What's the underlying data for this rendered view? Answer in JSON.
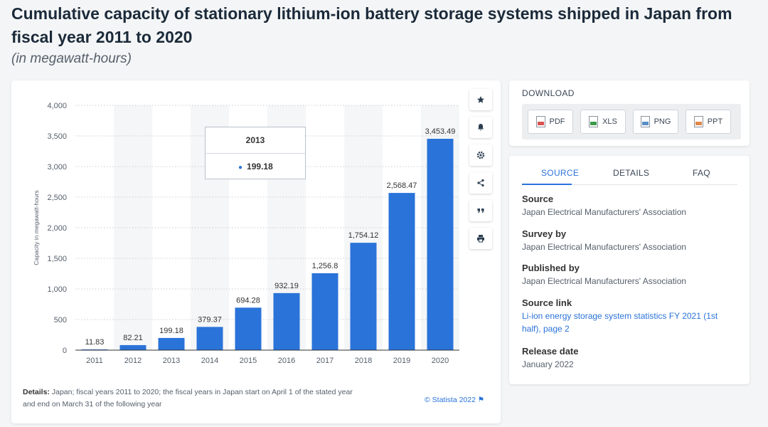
{
  "header": {
    "title": "Cumulative capacity of stationary lithium-ion battery storage systems shipped in Japan from fiscal year 2011 to 2020",
    "subtitle": "(in megawatt-hours)"
  },
  "chart_data": {
    "type": "bar",
    "categories": [
      "2011",
      "2012",
      "2013",
      "2014",
      "2015",
      "2016",
      "2017",
      "2018",
      "2019",
      "2020"
    ],
    "values": [
      11.83,
      82.21,
      199.18,
      379.37,
      694.28,
      932.19,
      1256.8,
      1754.12,
      2568.47,
      3453.49
    ],
    "value_labels": [
      "11.83",
      "82.21",
      "199.18",
      "379.37",
      "694.28",
      "932.19",
      "1,256.8",
      "1,754.12",
      "2,568.47",
      "3,453.49"
    ],
    "yticks": [
      0,
      500,
      1000,
      1500,
      2000,
      2500,
      3000,
      3500,
      4000
    ],
    "ytick_labels": [
      "0",
      "500",
      "1,000",
      "1,500",
      "2,000",
      "2,500",
      "3,000",
      "3,500",
      "4,000"
    ],
    "ylim": [
      0,
      4000
    ],
    "xlabel": "",
    "ylabel": "Capacity in megawatt-hours",
    "bar_color": "#2a73d9",
    "grid": true
  },
  "tooltip": {
    "year": "2013",
    "value": "199.18"
  },
  "toolbar": {
    "icons": [
      "star-icon",
      "bell-icon",
      "gear-icon",
      "share-icon",
      "quote-icon",
      "print-icon"
    ]
  },
  "footer": {
    "details_label": "Details:",
    "details_text": "Japan; fiscal years 2011 to 2020; the fiscal years in Japan start on April 1 of the stated year and end on March 31 of the following year",
    "credit": "© Statista 2022"
  },
  "download": {
    "label": "DOWNLOAD",
    "buttons": [
      {
        "label": "PDF",
        "color": "#d9534f"
      },
      {
        "label": "XLS",
        "color": "#3c9a4a"
      },
      {
        "label": "PNG",
        "color": "#5a8fc7"
      },
      {
        "label": "PPT",
        "color": "#e0874a"
      }
    ]
  },
  "info": {
    "tabs": [
      "SOURCE",
      "DETAILS",
      "FAQ"
    ],
    "source_label": "Source",
    "source_value": "Japan Electrical Manufacturers' Association",
    "survey_label": "Survey by",
    "survey_value": "Japan Electrical Manufacturers' Association",
    "published_label": "Published by",
    "published_value": "Japan Electrical Manufacturers' Association",
    "link_label": "Source link",
    "link_value": "Li-ion energy storage system statistics FY 2021 (1st half), page 2",
    "release_label": "Release date",
    "release_value": "January 2022"
  }
}
